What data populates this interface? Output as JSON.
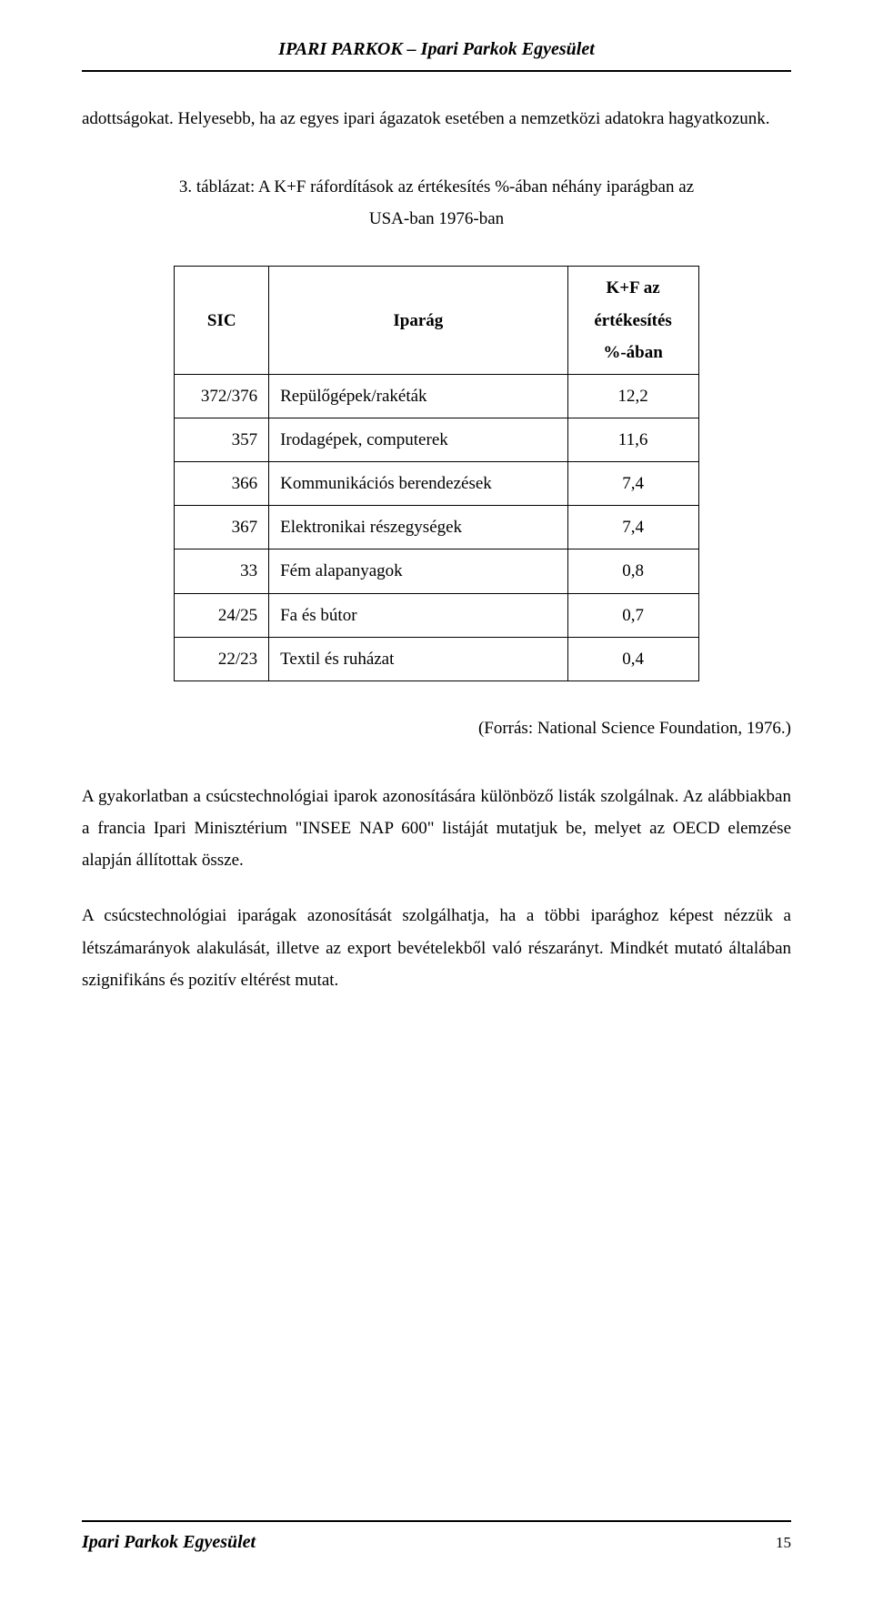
{
  "header": {
    "title": "IPARI PARKOK – Ipari Parkok Egyesület"
  },
  "body": {
    "intro": "adottságokat. Helyesebb, ha az egyes ipari ágazatok esetében a nemzetközi adatokra hagyatkozunk.",
    "table_title_line1": "3. táblázat: A K+F ráfordítások az értékesítés %-ában néhány iparágban az",
    "table_title_line2": "USA-ban 1976-ban",
    "source": "(Forrás: National Science Foundation, 1976.)",
    "p1": "A gyakorlatban a csúcstechnológiai iparok azonosítására különböző listák szolgálnak. Az alábbiakban a francia Ipari Minisztérium \"INSEE NAP 600\" listáját mutatjuk be, melyet az OECD elemzése alapján állítottak össze.",
    "p2": "A csúcstechnológiai iparágak azonosítását szolgálhatja, ha a többi iparághoz képest nézzük a létszámarányok alakulását, illetve az export bevételekből való részarányt. Mindkét mutató általában szignifikáns és pozitív eltérést mutat."
  },
  "table": {
    "columns": [
      {
        "label": "SIC",
        "align": "center"
      },
      {
        "label": "Iparág",
        "align": "center"
      },
      {
        "label_line1": "K+F az értékesítés",
        "label_line2": "%-ában",
        "align": "center"
      }
    ],
    "rows": [
      {
        "sic": "372/376",
        "industry": "Repülőgépek/rakéták",
        "value": "12,2"
      },
      {
        "sic": "357",
        "industry": "Irodagépek, computerek",
        "value": "11,6"
      },
      {
        "sic": "366",
        "industry": "Kommunikációs berendezések",
        "value": "7,4"
      },
      {
        "sic": "367",
        "industry": "Elektronikai részegységek",
        "value": "7,4"
      },
      {
        "sic": "33",
        "industry": "Fém alapanyagok",
        "value": "0,8"
      },
      {
        "sic": "24/25",
        "industry": "Fa és bútor",
        "value": "0,7"
      },
      {
        "sic": "22/23",
        "industry": "Textil és ruházat",
        "value": "0,4"
      }
    ],
    "border_color": "#000000",
    "font_size_pt": 12
  },
  "footer": {
    "left": "Ipari Parkok Egyesület",
    "page_number": "15"
  },
  "colors": {
    "text": "#000000",
    "background": "#ffffff",
    "rule": "#000000"
  }
}
